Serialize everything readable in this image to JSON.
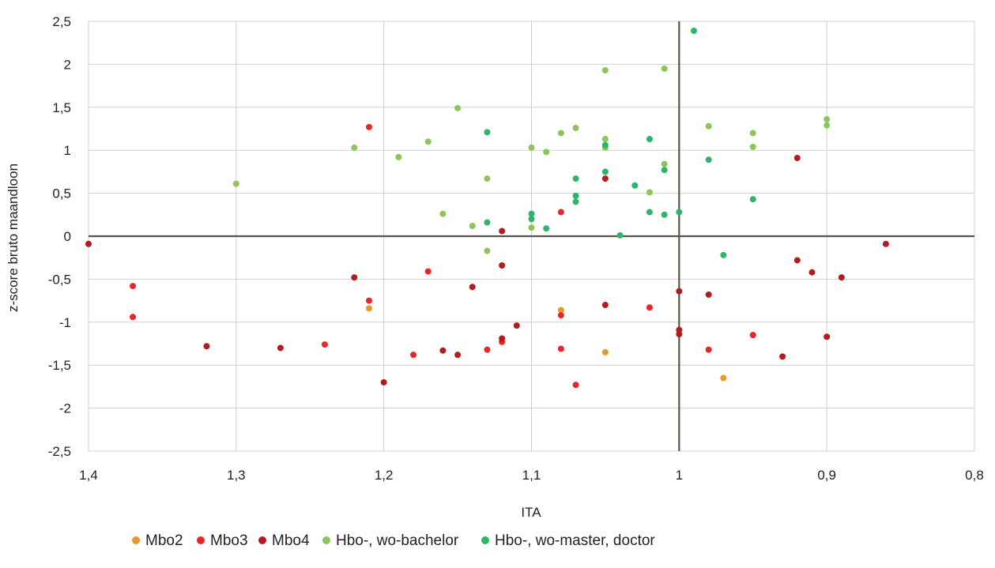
{
  "chart_data": {
    "type": "scatter",
    "title": "",
    "xlabel": "ITA",
    "ylabel": "z-score bruto maandloon",
    "xlim": [
      1.4,
      0.8
    ],
    "x_reversed": true,
    "ylim": [
      -2.5,
      2.5
    ],
    "grid": true,
    "legend_position": "bottom",
    "x_ticks": [
      1.4,
      1.3,
      1.2,
      1.1,
      1.0,
      0.9,
      0.8
    ],
    "x_tick_labels": [
      "1,4",
      "1,3",
      "1,2",
      "1,1",
      "1",
      "0,9",
      "0,8"
    ],
    "y_ticks": [
      2.5,
      2,
      1.5,
      1,
      0.5,
      0,
      -0.5,
      -1,
      -1.5,
      -2,
      -2.5
    ],
    "y_tick_labels": [
      "2,5",
      "2",
      "1,5",
      "1",
      "0,5",
      "0",
      "-0,5",
      "-1",
      "-1,5",
      "-2",
      "-2,5"
    ],
    "series": [
      {
        "name": "Mbo2",
        "color": "#E8962E",
        "points": [
          [
            1.21,
            -0.84
          ],
          [
            1.08,
            -0.86
          ],
          [
            1.05,
            -1.35
          ],
          [
            0.97,
            -1.65
          ]
        ]
      },
      {
        "name": "Mbo3",
        "color": "#E8262A",
        "points": [
          [
            1.37,
            -0.58
          ],
          [
            1.37,
            -0.94
          ],
          [
            1.21,
            -0.75
          ],
          [
            1.21,
            1.27
          ],
          [
            1.24,
            -1.26
          ],
          [
            1.18,
            -1.38
          ],
          [
            1.17,
            -0.41
          ],
          [
            1.13,
            -1.32
          ],
          [
            1.12,
            -1.23
          ],
          [
            1.08,
            0.28
          ],
          [
            1.08,
            -0.92
          ],
          [
            1.08,
            -1.31
          ],
          [
            1.07,
            -1.73
          ],
          [
            1.02,
            -0.83
          ],
          [
            0.98,
            -1.32
          ],
          [
            0.95,
            -1.15
          ]
        ]
      },
      {
        "name": "Mbo4",
        "color": "#B31B1E",
        "points": [
          [
            1.4,
            -0.09
          ],
          [
            1.32,
            -1.28
          ],
          [
            1.27,
            -1.3
          ],
          [
            1.22,
            -0.48
          ],
          [
            1.2,
            -1.7
          ],
          [
            1.16,
            -1.33
          ],
          [
            1.15,
            -1.38
          ],
          [
            1.14,
            -0.59
          ],
          [
            1.12,
            -0.34
          ],
          [
            1.12,
            0.06
          ],
          [
            1.12,
            -1.19
          ],
          [
            1.11,
            -1.04
          ],
          [
            1.05,
            0.67
          ],
          [
            1.05,
            -0.8
          ],
          [
            1.0,
            -0.64
          ],
          [
            1.0,
            -1.09
          ],
          [
            1.0,
            -1.14
          ],
          [
            0.98,
            -0.68
          ],
          [
            0.93,
            -1.4
          ],
          [
            0.92,
            0.91
          ],
          [
            0.92,
            -0.28
          ],
          [
            0.91,
            -0.42
          ],
          [
            0.9,
            -1.17
          ],
          [
            0.89,
            -0.48
          ],
          [
            0.86,
            -0.09
          ]
        ]
      },
      {
        "name": "Hbo-, wo-bachelor",
        "color": "#8CC65A",
        "points": [
          [
            1.3,
            0.61
          ],
          [
            1.22,
            1.03
          ],
          [
            1.19,
            0.92
          ],
          [
            1.17,
            1.1
          ],
          [
            1.16,
            0.26
          ],
          [
            1.15,
            1.49
          ],
          [
            1.14,
            0.12
          ],
          [
            1.13,
            0.67
          ],
          [
            1.13,
            -0.17
          ],
          [
            1.1,
            1.03
          ],
          [
            1.1,
            0.1
          ],
          [
            1.09,
            0.98
          ],
          [
            1.08,
            1.2
          ],
          [
            1.07,
            1.26
          ],
          [
            1.05,
            1.93
          ],
          [
            1.05,
            1.13
          ],
          [
            1.05,
            1.03
          ],
          [
            1.01,
            1.95
          ],
          [
            1.01,
            0.84
          ],
          [
            1.02,
            0.51
          ],
          [
            0.98,
            1.28
          ],
          [
            0.95,
            1.2
          ],
          [
            0.95,
            1.04
          ],
          [
            0.9,
            1.36
          ],
          [
            0.9,
            1.29
          ]
        ]
      },
      {
        "name": "Hbo-, wo-master, doctor",
        "color": "#2DB56A",
        "points": [
          [
            1.13,
            1.21
          ],
          [
            1.13,
            0.16
          ],
          [
            1.1,
            0.26
          ],
          [
            1.1,
            0.2
          ],
          [
            1.09,
            0.09
          ],
          [
            1.07,
            0.67
          ],
          [
            1.07,
            0.47
          ],
          [
            1.07,
            0.4
          ],
          [
            1.05,
            1.06
          ],
          [
            1.05,
            0.75
          ],
          [
            1.04,
            0.01
          ],
          [
            1.03,
            0.59
          ],
          [
            1.02,
            1.13
          ],
          [
            1.02,
            0.28
          ],
          [
            1.01,
            0.77
          ],
          [
            1.01,
            0.25
          ],
          [
            1.0,
            0.28
          ],
          [
            0.99,
            2.39
          ],
          [
            0.98,
            0.89
          ],
          [
            0.97,
            -0.22
          ],
          [
            0.95,
            0.43
          ]
        ]
      }
    ]
  }
}
